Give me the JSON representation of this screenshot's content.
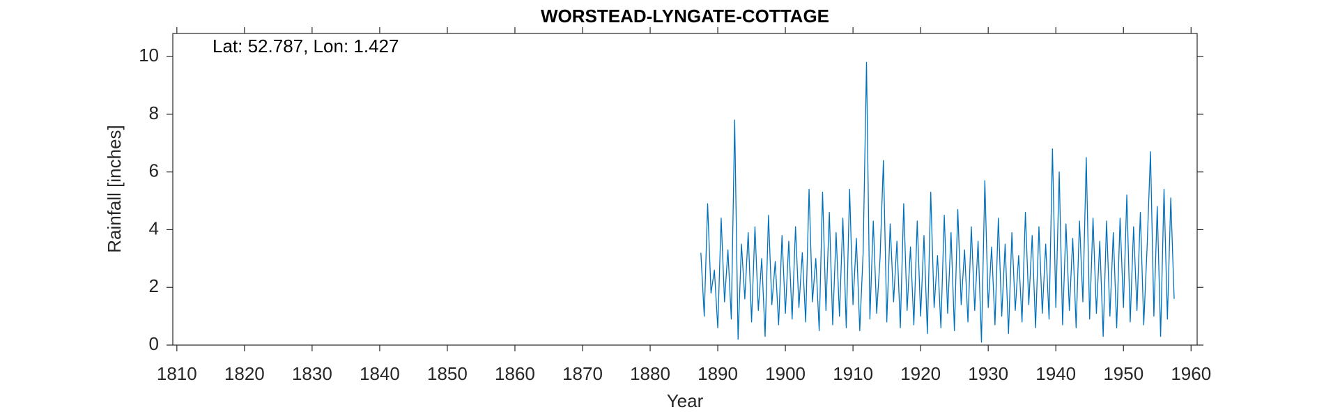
{
  "chart_data": {
    "type": "line",
    "title": "WORSTEAD-LYNGATE-COTTAGE",
    "annotation": "Lat: 52.787, Lon: 1.427",
    "x_label": "Year",
    "y_label": "Rainfall [inches]",
    "xlim": [
      1809.4,
      1960.9
    ],
    "ylim": [
      0,
      10.8
    ],
    "xticks": [
      1810,
      1820,
      1830,
      1840,
      1850,
      1860,
      1870,
      1880,
      1890,
      1900,
      1910,
      1920,
      1930,
      1940,
      1950,
      1960
    ],
    "yticks": [
      0,
      2,
      4,
      6,
      8,
      10
    ],
    "x": [
      1887.5,
      1888,
      1888.5,
      1889,
      1889.5,
      1890,
      1890.5,
      1891,
      1891.5,
      1892,
      1892.5,
      1893,
      1893.5,
      1894,
      1894.5,
      1895,
      1895.5,
      1896,
      1896.5,
      1897,
      1897.5,
      1898,
      1898.5,
      1899,
      1899.5,
      1900,
      1900.5,
      1901,
      1901.5,
      1902,
      1902.5,
      1903,
      1903.5,
      1904,
      1904.5,
      1905,
      1905.5,
      1906,
      1906.5,
      1907,
      1907.5,
      1908,
      1908.5,
      1909,
      1909.5,
      1910,
      1910.5,
      1911,
      1911.5,
      1912,
      1912.5,
      1913,
      1913.5,
      1914,
      1914.5,
      1915,
      1915.5,
      1916,
      1916.5,
      1917,
      1917.5,
      1918,
      1918.5,
      1919,
      1919.5,
      1920,
      1920.5,
      1921,
      1921.5,
      1922,
      1922.5,
      1923,
      1923.5,
      1924,
      1924.5,
      1925,
      1925.5,
      1926,
      1926.5,
      1927,
      1927.5,
      1928,
      1928.5,
      1929,
      1929.5,
      1930,
      1930.5,
      1931,
      1931.5,
      1932,
      1932.5,
      1933,
      1933.5,
      1934,
      1934.5,
      1935,
      1935.5,
      1936,
      1936.5,
      1937,
      1937.5,
      1938,
      1938.5,
      1939,
      1939.5,
      1940,
      1940.5,
      1941,
      1941.5,
      1942,
      1942.5,
      1943,
      1943.5,
      1944,
      1944.5,
      1945,
      1945.5,
      1946,
      1946.5,
      1947,
      1947.5,
      1948,
      1948.5,
      1949,
      1949.5,
      1950,
      1950.5,
      1951,
      1951.5,
      1952,
      1952.5,
      1953,
      1953.5,
      1954,
      1954.5,
      1955,
      1955.5,
      1956,
      1956.5,
      1957,
      1957.5
    ],
    "series": [
      {
        "color": "#0072bd",
        "values": [
          3.2,
          1.0,
          4.9,
          1.8,
          2.6,
          0.6,
          4.4,
          1.5,
          3.3,
          0.9,
          7.8,
          0.2,
          3.5,
          1.6,
          3.9,
          0.8,
          4.1,
          1.2,
          3.0,
          0.3,
          4.5,
          1.4,
          2.9,
          0.7,
          3.8,
          1.1,
          3.6,
          0.9,
          4.1,
          1.3,
          3.2,
          0.8,
          5.4,
          1.5,
          3.0,
          0.5,
          5.3,
          1.2,
          4.6,
          0.7,
          3.9,
          1.0,
          4.4,
          0.6,
          5.4,
          1.4,
          3.7,
          0.5,
          3.2,
          9.8,
          0.9,
          4.3,
          1.1,
          3.0,
          6.4,
          0.8,
          4.2,
          1.5,
          3.6,
          0.6,
          4.9,
          1.2,
          3.4,
          0.7,
          4.3,
          1.0,
          3.8,
          0.4,
          5.3,
          1.3,
          3.1,
          0.6,
          4.5,
          1.1,
          3.9,
          0.5,
          4.7,
          1.4,
          3.3,
          0.8,
          4.1,
          1.2,
          3.6,
          0.1,
          5.7,
          1.3,
          3.4,
          0.7,
          4.4,
          1.0,
          3.5,
          0.4,
          3.9,
          1.2,
          3.1,
          0.8,
          4.6,
          1.4,
          3.8,
          0.6,
          4.1,
          1.1,
          3.5,
          0.9,
          6.8,
          1.3,
          6.0,
          0.7,
          4.2,
          1.2,
          3.7,
          0.6,
          4.3,
          1.5,
          6.5,
          0.9,
          4.4,
          1.1,
          3.6,
          0.3,
          4.3,
          1.0,
          3.9,
          0.6,
          4.4,
          1.3,
          5.2,
          0.8,
          4.1,
          1.2,
          4.6,
          0.7,
          3.4,
          6.7,
          1.0,
          4.8,
          0.3,
          5.4,
          0.9,
          5.1,
          1.6
        ]
      }
    ]
  }
}
